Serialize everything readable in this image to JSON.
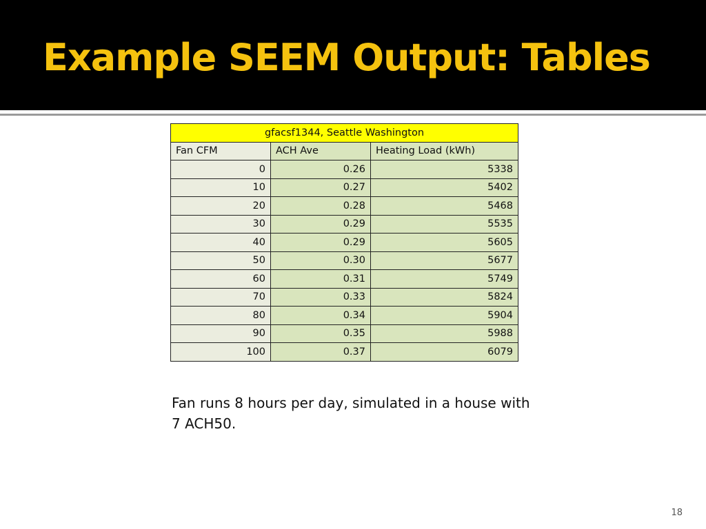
{
  "slide": {
    "title": "Example SEEM Output: Tables",
    "page_number": "18",
    "note": "Fan runs 8 hours per day, simulated in a house with 7 ACH50."
  },
  "table": {
    "caption": "gfacsf1344, Seattle Washington",
    "headers": [
      "Fan CFM",
      "ACH Ave",
      "Heating Load (kWh)"
    ],
    "rows": [
      [
        "0",
        "0.26",
        "5338"
      ],
      [
        "10",
        "0.27",
        "5402"
      ],
      [
        "20",
        "0.28",
        "5468"
      ],
      [
        "30",
        "0.29",
        "5535"
      ],
      [
        "40",
        "0.29",
        "5605"
      ],
      [
        "50",
        "0.30",
        "5677"
      ],
      [
        "60",
        "0.31",
        "5749"
      ],
      [
        "70",
        "0.33",
        "5824"
      ],
      [
        "80",
        "0.34",
        "5904"
      ],
      [
        "90",
        "0.35",
        "5988"
      ],
      [
        "100",
        "0.37",
        "6079"
      ]
    ]
  },
  "colors": {
    "title": "#f5c20f",
    "caption_bg": "#ffff00",
    "col_light": "#ebeddf",
    "col_green": "#d9e5bd"
  }
}
